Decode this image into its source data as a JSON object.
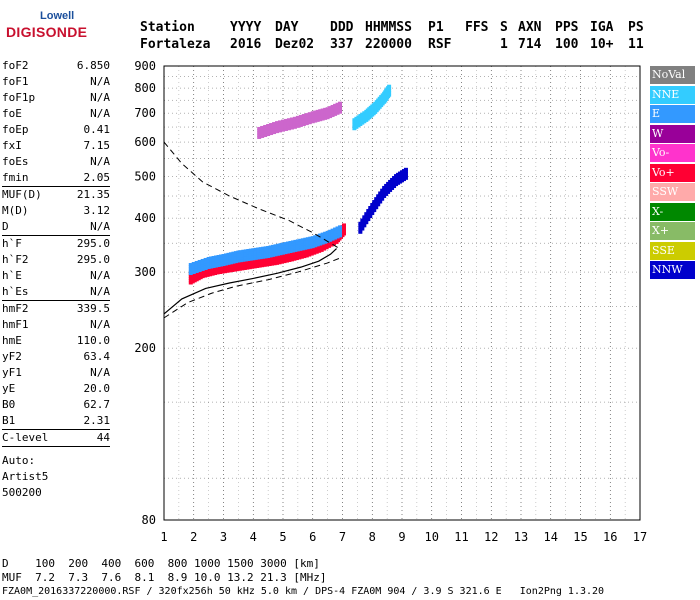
{
  "logo": {
    "line1": "Lowell",
    "line2": "DIGISONDE"
  },
  "header": {
    "row1": [
      "Station",
      "YYYY",
      "DAY",
      "DDD",
      "HHMMSS",
      "P1",
      "FFS",
      "S",
      "AXN",
      "PPS",
      "IGA",
      "PS"
    ],
    "row2": [
      "Fortaleza",
      "2016",
      "Dez02",
      "337",
      "220000",
      "RSF",
      "",
      "1",
      "714",
      "100",
      "10+",
      "11"
    ]
  },
  "params": [
    {
      "k": "foF2",
      "v": "6.850"
    },
    {
      "k": "foF1",
      "v": "N/A"
    },
    {
      "k": "foF1p",
      "v": "N/A"
    },
    {
      "k": "foE",
      "v": "N/A"
    },
    {
      "k": "foEp",
      "v": "0.41"
    },
    {
      "k": "fxI",
      "v": "7.15"
    },
    {
      "k": "foEs",
      "v": "N/A"
    },
    {
      "k": "fmin",
      "v": "2.05"
    },
    {
      "sep": true
    },
    {
      "k": "MUF(D)",
      "v": "21.35"
    },
    {
      "k": "M(D)",
      "v": "3.12"
    },
    {
      "k": "D",
      "v": "N/A"
    },
    {
      "sep": true
    },
    {
      "k": "h`F",
      "v": "295.0"
    },
    {
      "k": "h`F2",
      "v": "295.0"
    },
    {
      "k": "h`E",
      "v": "N/A"
    },
    {
      "k": "h`Es",
      "v": "N/A"
    },
    {
      "sep": true
    },
    {
      "k": "hmF2",
      "v": "339.5"
    },
    {
      "k": "hmF1",
      "v": "N/A"
    },
    {
      "k": "hmE",
      "v": "110.0"
    },
    {
      "k": "yF2",
      "v": "63.4"
    },
    {
      "k": "yF1",
      "v": "N/A"
    },
    {
      "k": "yE",
      "v": "20.0"
    },
    {
      "k": "B0",
      "v": "62.7"
    },
    {
      "k": "B1",
      "v": "2.31"
    },
    {
      "sep": true
    },
    {
      "k": "C-level",
      "v": "44"
    },
    {
      "sep": true
    }
  ],
  "auto": [
    "Auto:",
    "Artist5",
    "500200"
  ],
  "legend": [
    {
      "label": "NoVal",
      "color": "#808080"
    },
    {
      "label": "NNE",
      "color": "#33ccff"
    },
    {
      "label": "E",
      "color": "#3399ff"
    },
    {
      "label": "W",
      "color": "#990099"
    },
    {
      "label": "Vo-",
      "color": "#ff33cc"
    },
    {
      "label": "Vo+",
      "color": "#ff0033"
    },
    {
      "label": "SSW",
      "color": "#ffaaaa"
    },
    {
      "label": "X-",
      "color": "#008800"
    },
    {
      "label": "X+",
      "color": "#88bb66"
    },
    {
      "label": "SSE",
      "color": "#cccc00"
    },
    {
      "label": "NNW",
      "color": "#0000cc"
    }
  ],
  "footer": {
    "d_line": "D    100  200  400  600  800 1000 1500 3000 [km]",
    "muf_line": "MUF  7.2  7.3  7.6  8.1  8.9 10.0 13.2 21.3 [MHz]",
    "file_line": "FZA0M_2016337220000.RSF / 320fx256h 50 kHz 5.0 km / DPS-4 FZA0M 904 / 3.9 S 321.6 E   Ion2Png 1.3.20"
  },
  "chart_data": {
    "type": "scatter",
    "xlim": [
      1,
      17
    ],
    "ylim": [
      80,
      900
    ],
    "x_ticks": [
      "1",
      "2",
      "3",
      "4",
      "5",
      "6",
      "7",
      "8",
      "9",
      "10",
      "11",
      "12",
      "13",
      "14",
      "15",
      "16",
      "17"
    ],
    "y_ticks": [
      {
        "v": 80,
        "label": "80"
      },
      {
        "v": 200,
        "label": "200"
      },
      {
        "v": 300,
        "label": "300"
      },
      {
        "v": 400,
        "label": "400"
      },
      {
        "v": 500,
        "label": "500"
      },
      {
        "v": 600,
        "label": "600"
      },
      {
        "v": 700,
        "label": "700"
      },
      {
        "v": 800,
        "label": "800"
      },
      {
        "v": 900,
        "label": "900"
      }
    ],
    "y_scale": "log",
    "grid": true,
    "echo_traces": [
      {
        "name": "o-trace",
        "color": "#ff0033",
        "x": [
          1.9,
          2.3,
          2.8,
          3.3,
          3.8,
          4.3,
          4.8,
          5.3,
          5.8,
          6.3,
          6.8,
          7.1
        ],
        "y": [
          290,
          300,
          306,
          310,
          314,
          318,
          322,
          328,
          335,
          345,
          360,
          380
        ]
      },
      {
        "name": "o-trace-upper",
        "color": "#3399ff",
        "x": [
          1.9,
          2.5,
          3.0,
          3.5,
          4.0,
          4.5,
          5.0,
          5.5,
          6.0,
          6.5,
          7.0
        ],
        "y": [
          305,
          315,
          320,
          326,
          330,
          334,
          340,
          346,
          352,
          362,
          375
        ]
      },
      {
        "name": "multihop",
        "color": "#cc66cc",
        "x": [
          4.2,
          4.8,
          5.4,
          6.0,
          6.5,
          7.0
        ],
        "y": [
          630,
          650,
          665,
          685,
          700,
          725
        ]
      },
      {
        "name": "x-branch",
        "color": "#33ccff",
        "x": [
          7.4,
          7.8,
          8.1,
          8.4,
          8.6
        ],
        "y": [
          660,
          690,
          720,
          760,
          795
        ]
      },
      {
        "name": "spread-f",
        "color": "#0000cc",
        "x": [
          7.6,
          8.0,
          8.4,
          8.8,
          9.2
        ],
        "y": [
          380,
          420,
          460,
          490,
          510
        ]
      }
    ],
    "profile": {
      "x": [
        1,
        1.6,
        2.4,
        3.2,
        4.0,
        4.8,
        5.6,
        6.2,
        6.6,
        6.8
      ],
      "y": [
        240,
        260,
        275,
        283,
        290,
        298,
        308,
        318,
        330,
        340
      ]
    },
    "dashed": {
      "x": [
        1,
        1.6,
        2.3,
        3.2,
        4.2,
        5.2,
        6.0,
        6.6,
        6.9
      ],
      "y": [
        600,
        535,
        485,
        450,
        420,
        395,
        370,
        350,
        340
      ]
    },
    "dashed2": {
      "x": [
        1,
        1.8,
        2.6,
        3.4,
        4.5,
        5.5,
        6.5,
        7.0
      ],
      "y": [
        235,
        255,
        268,
        278,
        288,
        300,
        315,
        325
      ]
    }
  }
}
